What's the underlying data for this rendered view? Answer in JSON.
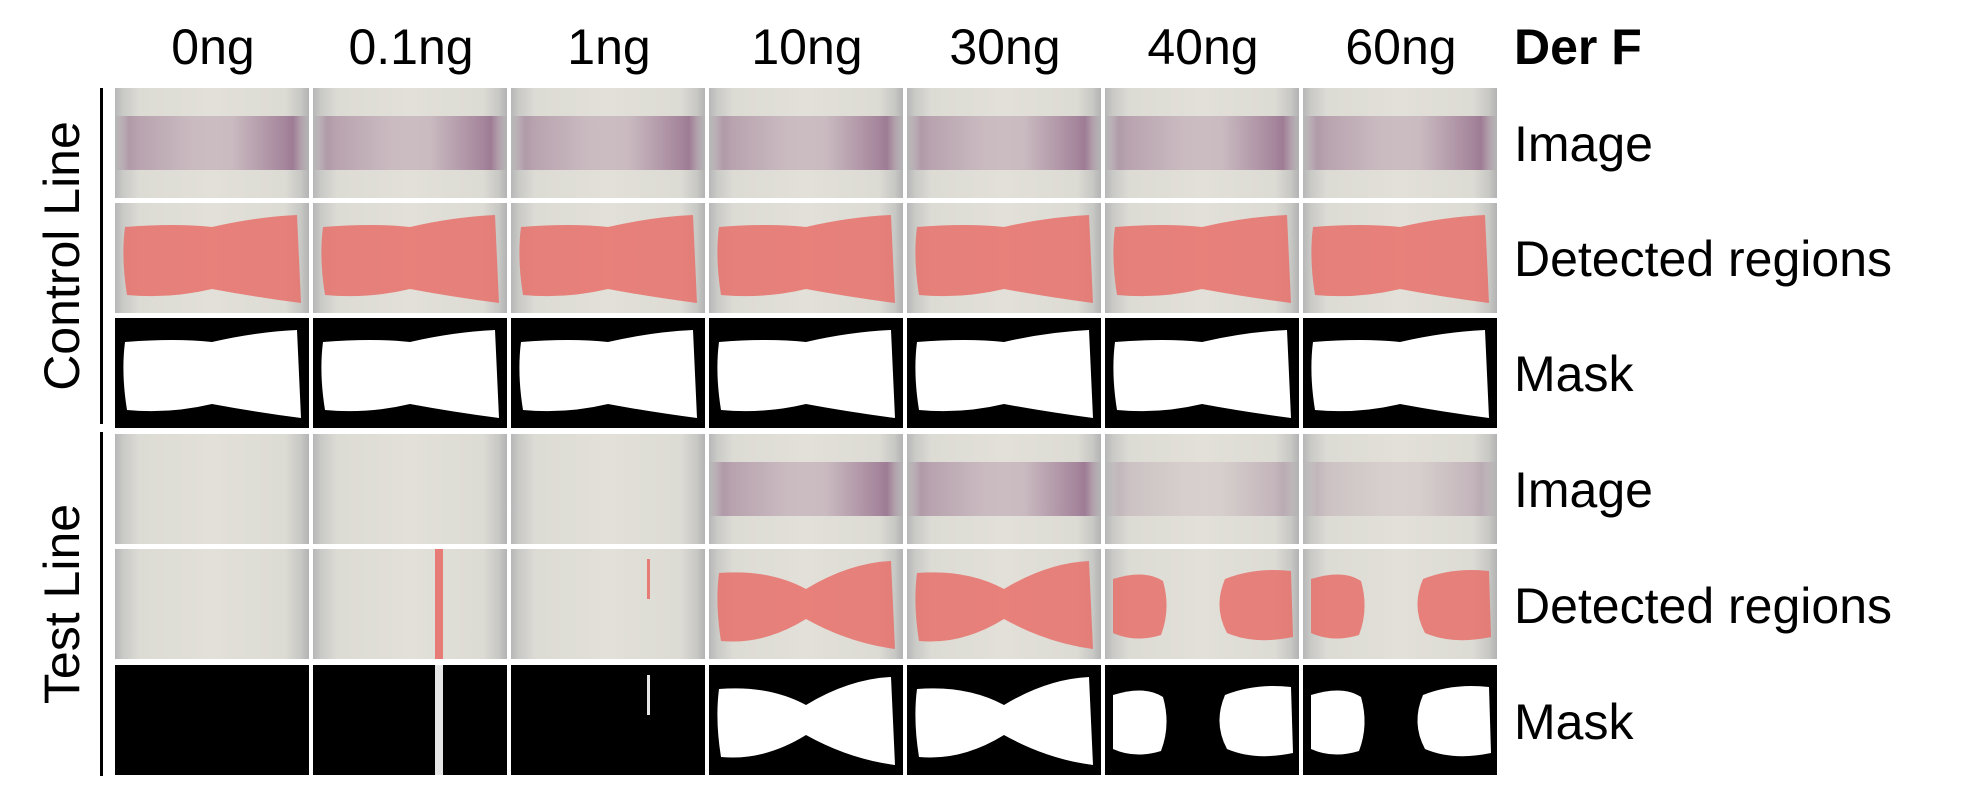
{
  "axis_title": "Der F",
  "columns": [
    "0ng",
    "0.1ng",
    "1ng",
    "10ng",
    "30ng",
    "40ng",
    "60ng"
  ],
  "groups": [
    {
      "label": "Control Line",
      "rows": [
        "Image",
        "Detected regions",
        "Mask"
      ],
      "band_intensity": [
        "strong",
        "strong",
        "strong",
        "strong",
        "strong",
        "strong",
        "strong"
      ]
    },
    {
      "label": "Test Line",
      "rows": [
        "Image",
        "Detected regions",
        "Mask"
      ],
      "band_intensity": [
        "none",
        "none",
        "none",
        "medium",
        "medium",
        "faint",
        "faint"
      ]
    }
  ],
  "colors": {
    "detected_overlay": "#e8706a",
    "mask_foreground": "#ffffff",
    "mask_background": "#000000",
    "strip_band": "#9c6e8c"
  }
}
